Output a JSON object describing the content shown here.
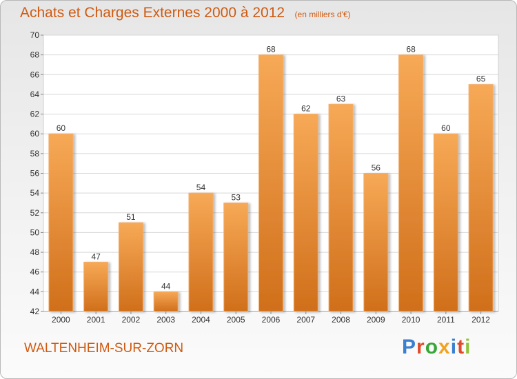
{
  "header": {
    "title": "Achats et Charges Externes 2000 à 2012",
    "subtitle": "(en milliers d'€)"
  },
  "footer": {
    "location": "WALTENHEIM-SUR-ZORN",
    "brand": "Proxiti"
  },
  "colors": {
    "title": "#d05a10",
    "bar_top": "#f7a956",
    "bar_bottom": "#d06f1b",
    "grid": "#d8d8d8",
    "axis_text": "#333333",
    "brand_letters": [
      "#3a7fd0",
      "#e04a2a",
      "#3aa63a",
      "#f2a21e",
      "#3a7fd0",
      "#e04a2a",
      "#8fc43a"
    ]
  },
  "chart_data": {
    "type": "bar",
    "title": "Achats et Charges Externes 2000 à 2012",
    "subtitle": "(en milliers d'€)",
    "categories": [
      "2000",
      "2001",
      "2002",
      "2003",
      "2004",
      "2005",
      "2006",
      "2007",
      "2008",
      "2009",
      "2010",
      "2011",
      "2012"
    ],
    "values": [
      60,
      47,
      51,
      44,
      54,
      53,
      68,
      62,
      63,
      56,
      68,
      60,
      65
    ],
    "ylim": [
      42,
      70
    ],
    "yticks": [
      42,
      44,
      46,
      48,
      50,
      52,
      54,
      56,
      58,
      60,
      62,
      64,
      66,
      68,
      70
    ],
    "xlabel": "",
    "ylabel": "",
    "grid": true,
    "data_labels": true
  }
}
